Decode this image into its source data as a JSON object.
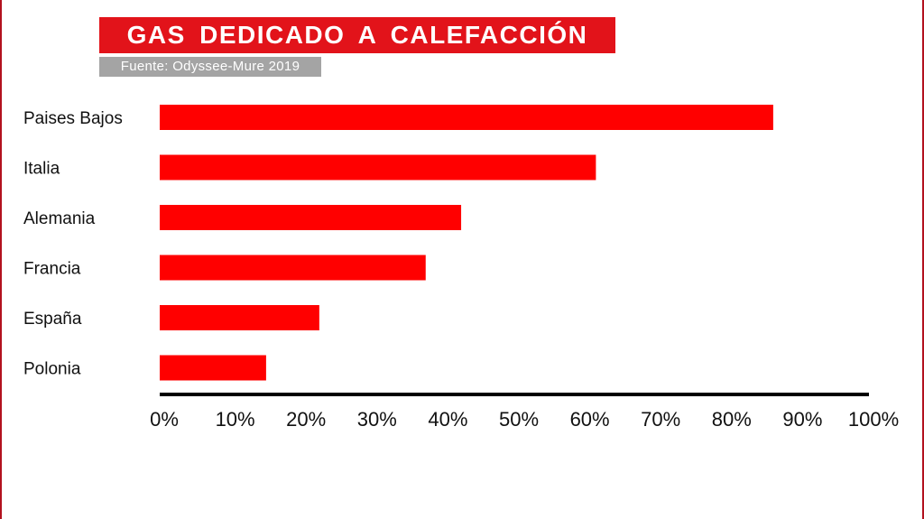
{
  "header": {
    "title": "GAS DEDICADO A CALEFACCIÓN",
    "source": "Fuente: Odyssee-Mure 2019"
  },
  "colors": {
    "bar": "#ff0000",
    "title_bg": "#e2131a",
    "source_bg": "#a4a4a4",
    "axis": "#000000"
  },
  "chart_data": {
    "type": "bar",
    "orientation": "horizontal",
    "title": "GAS DEDICADO A CALEFACCIÓN",
    "subtitle": "Fuente: Odyssee-Mure 2019",
    "categories": [
      "Paises Bajos",
      "Italia",
      "Alemania",
      "Francia",
      "España",
      "Polonia"
    ],
    "values": [
      86.5,
      61.5,
      42.5,
      37.5,
      22.5,
      15
    ],
    "xlim": [
      0,
      100
    ],
    "xticks": [
      "0%",
      "10%",
      "20%",
      "30%",
      "40%",
      "50%",
      "60%",
      "70%",
      "80%",
      "90%",
      "100%"
    ],
    "grid": false,
    "legend": "none"
  }
}
